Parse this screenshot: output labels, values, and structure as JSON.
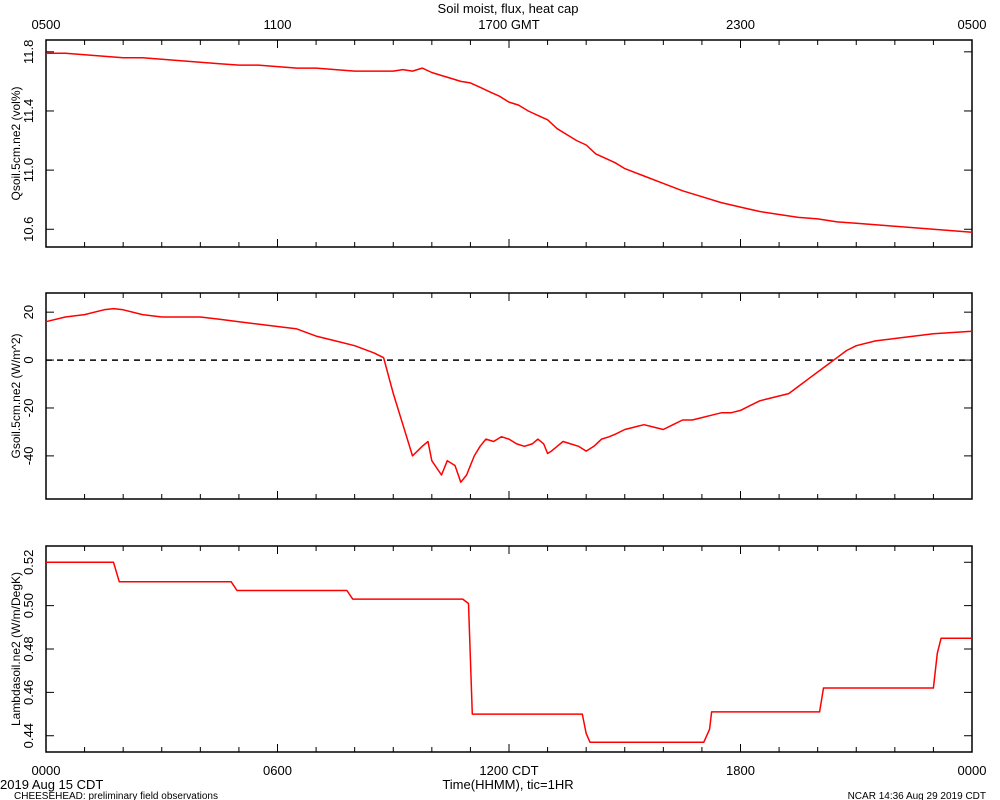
{
  "title": "Soil moist, flux, heat cap",
  "footer": {
    "date_label": "2019 Aug 15 CDT",
    "project_label": "CHEESEHEAD: preliminary field observations",
    "credit_label": "NCAR 14:36 Aug 29 2019 CDT",
    "xlabel": "Time(HHMM), tic=1HR"
  },
  "colors": {
    "series": "#ff0000",
    "axis": "#000000",
    "zero_line": "#000000"
  },
  "chart_data": [
    {
      "type": "line",
      "ylabel": "Qsoil.5cm.ne2 (vol%)",
      "x_unit": "hours since 0000 CDT",
      "xlim": [
        0,
        24
      ],
      "ylim": [
        10.48,
        11.88
      ],
      "yticks": [
        10.6,
        11.0,
        11.4,
        11.8
      ],
      "ytick_labels": [
        "10.6",
        "11.0",
        "11.4",
        "11.8"
      ],
      "top_axis_ticks": [
        0,
        6,
        12,
        18,
        24
      ],
      "top_axis_labels": [
        "0500",
        "1100",
        "1700 GMT",
        "2300",
        "0500"
      ],
      "series": [
        {
          "x": [
            0,
            0.5,
            1,
            1.5,
            2,
            2.5,
            3,
            3.5,
            4,
            4.5,
            5,
            5.5,
            6,
            6.5,
            7,
            7.5,
            8,
            8.5,
            9,
            9.25,
            9.5,
            9.75,
            10,
            10.25,
            10.5,
            10.75,
            11,
            11.25,
            11.5,
            11.75,
            12,
            12.25,
            12.5,
            12.75,
            13,
            13.25,
            13.5,
            13.75,
            14,
            14.25,
            14.5,
            14.75,
            15,
            15.5,
            16,
            16.5,
            17,
            17.5,
            18,
            18.5,
            19,
            19.5,
            20,
            20.5,
            21,
            21.5,
            22,
            22.5,
            23,
            23.5,
            24
          ],
          "y": [
            11.79,
            11.79,
            11.78,
            11.77,
            11.76,
            11.76,
            11.75,
            11.74,
            11.73,
            11.72,
            11.71,
            11.71,
            11.7,
            11.69,
            11.69,
            11.68,
            11.67,
            11.67,
            11.67,
            11.68,
            11.67,
            11.69,
            11.66,
            11.64,
            11.62,
            11.6,
            11.59,
            11.56,
            11.53,
            11.5,
            11.46,
            11.44,
            11.4,
            11.37,
            11.34,
            11.28,
            11.24,
            11.2,
            11.17,
            11.11,
            11.08,
            11.05,
            11.01,
            10.96,
            10.91,
            10.86,
            10.82,
            10.78,
            10.75,
            10.72,
            10.7,
            10.68,
            10.67,
            10.65,
            10.64,
            10.63,
            10.62,
            10.61,
            10.6,
            10.59,
            10.58
          ]
        }
      ]
    },
    {
      "type": "line",
      "ylabel": "Gsoil.5cm.ne2 (W/m^2)",
      "x_unit": "hours since 0000 CDT",
      "xlim": [
        0,
        24
      ],
      "ylim": [
        -58,
        28
      ],
      "yticks": [
        -40,
        -20,
        0,
        20
      ],
      "ytick_labels": [
        "-40",
        "-20",
        "0",
        "20"
      ],
      "zero_line": true,
      "series": [
        {
          "x": [
            0,
            0.5,
            1,
            1.5,
            1.75,
            2,
            2.5,
            3,
            3.5,
            4,
            4.5,
            5,
            5.5,
            6,
            6.5,
            7,
            7.5,
            8,
            8.5,
            8.75,
            8.9,
            9.0,
            9.25,
            9.5,
            9.75,
            9.9,
            10.0,
            10.25,
            10.4,
            10.6,
            10.75,
            10.9,
            11.0,
            11.1,
            11.25,
            11.4,
            11.6,
            11.8,
            12.0,
            12.2,
            12.4,
            12.6,
            12.75,
            12.9,
            13.0,
            13.1,
            13.25,
            13.4,
            13.6,
            13.8,
            14.0,
            14.2,
            14.4,
            14.6,
            14.75,
            15.0,
            15.25,
            15.5,
            15.75,
            16.0,
            16.25,
            16.5,
            16.75,
            17.0,
            17.25,
            17.5,
            17.75,
            18.0,
            18.25,
            18.5,
            18.75,
            19.0,
            19.25,
            19.5,
            19.75,
            20.0,
            20.25,
            20.5,
            20.75,
            21.0,
            21.5,
            22.0,
            22.5,
            23.0,
            23.5,
            24.0
          ],
          "y": [
            16,
            18,
            19,
            21,
            21.5,
            21,
            19,
            18,
            18,
            18,
            17,
            16,
            15,
            14,
            13,
            10,
            8,
            6,
            3,
            1,
            -8,
            -14,
            -27,
            -40,
            -36,
            -34,
            -42,
            -48,
            -42,
            -44,
            -51,
            -48,
            -44,
            -40,
            -36,
            -33,
            -34,
            -32,
            -33,
            -35,
            -36,
            -35,
            -33,
            -35,
            -39,
            -38,
            -36,
            -34,
            -35,
            -36,
            -38,
            -36,
            -33,
            -32,
            -31,
            -29,
            -28,
            -27,
            -28,
            -29,
            -27,
            -25,
            -25,
            -24,
            -23,
            -22,
            -22,
            -21,
            -19,
            -17,
            -16,
            -15,
            -14,
            -11,
            -8,
            -5,
            -2,
            1,
            4,
            6,
            8,
            9,
            10,
            11,
            11.5,
            12
          ]
        }
      ]
    },
    {
      "type": "line",
      "ylabel": "Lambdasoil.ne2 (W/m/DegK)",
      "x_unit": "hours since 0000 CDT",
      "xlim": [
        0,
        24
      ],
      "ylim": [
        0.4325,
        0.5275
      ],
      "yticks": [
        0.44,
        0.46,
        0.48,
        0.5,
        0.52
      ],
      "ytick_labels": [
        "0.44",
        "0.46",
        "0.48",
        "0.50",
        "0.52"
      ],
      "bottom_axis_ticks": [
        0,
        6,
        12,
        18,
        24
      ],
      "bottom_axis_labels": [
        "0000",
        "0600",
        "1200 CDT",
        "1800",
        "0000"
      ],
      "series": [
        {
          "x": [
            0,
            1.75,
            1.9,
            4.8,
            4.95,
            7.8,
            7.95,
            10.8,
            10.95,
            11.05,
            13.9,
            14.0,
            14.1,
            17.05,
            17.2,
            17.25,
            20.05,
            20.15,
            23.0,
            23.1,
            23.2,
            24.0
          ],
          "y": [
            0.52,
            0.52,
            0.511,
            0.511,
            0.507,
            0.507,
            0.503,
            0.503,
            0.501,
            0.45,
            0.45,
            0.441,
            0.437,
            0.437,
            0.443,
            0.451,
            0.451,
            0.462,
            0.462,
            0.478,
            0.485,
            0.485
          ]
        }
      ]
    }
  ]
}
